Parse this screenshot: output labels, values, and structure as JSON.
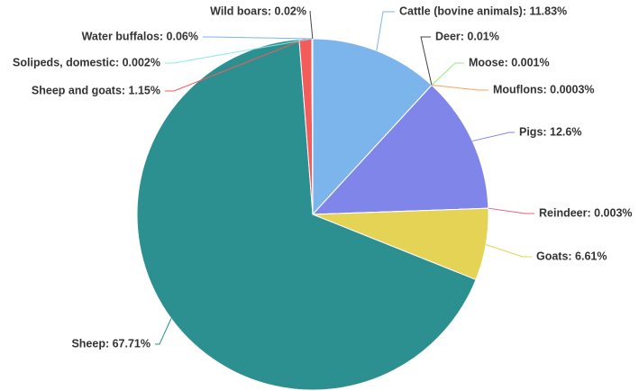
{
  "chart_data": {
    "type": "pie",
    "start_angle_deg": 0,
    "direction": "clockwise",
    "legend": "none",
    "slices": [
      {
        "name": "Cattle (bovine animals)",
        "value": 11.83,
        "label": "Cattle (bovine animals): 11.83%",
        "color": "#7cb5ec"
      },
      {
        "name": "Deer",
        "value": 0.01,
        "label": "Deer: 0.01%",
        "color": "#434348"
      },
      {
        "name": "Moose",
        "value": 0.001,
        "label": "Moose: 0.001%",
        "color": "#90ed7d"
      },
      {
        "name": "Mouflons",
        "value": 0.0003,
        "label": "Mouflons: 0.0003%",
        "color": "#f7a35c"
      },
      {
        "name": "Pigs",
        "value": 12.6,
        "label": "Pigs: 12.6%",
        "color": "#8085e9"
      },
      {
        "name": "Reindeer",
        "value": 0.003,
        "label": "Reindeer: 0.003%",
        "color": "#f15c80"
      },
      {
        "name": "Goats",
        "value": 6.61,
        "label": "Goats: 6.61%",
        "color": "#e4d354"
      },
      {
        "name": "Sheep",
        "value": 67.71,
        "label": "Sheep: 67.71%",
        "color": "#2b908f"
      },
      {
        "name": "Sheep and goats",
        "value": 1.15,
        "label": "Sheep and goats: 1.15%",
        "color": "#f45b5b"
      },
      {
        "name": "Solipeds, domestic",
        "value": 0.002,
        "label": "Solipeds, domestic: 0.002%",
        "color": "#91e8e1"
      },
      {
        "name": "Water buffalos",
        "value": 0.06,
        "label": "Water buffalos: 0.06%",
        "color": "#7cb5ec"
      },
      {
        "name": "Wild boars",
        "value": 0.02,
        "label": "Wild boars: 0.02%",
        "color": "#434348"
      }
    ]
  }
}
